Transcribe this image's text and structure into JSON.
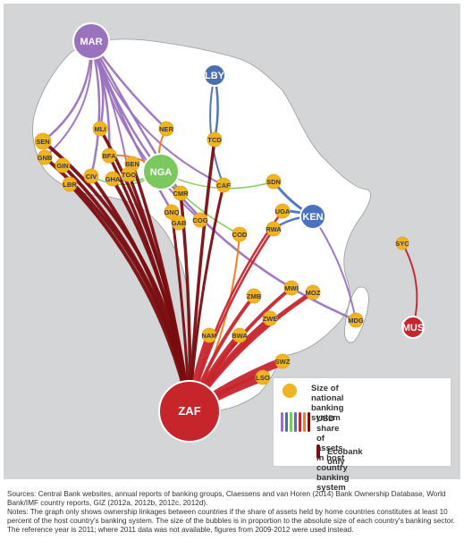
{
  "nodes": [
    {
      "code": "MAR",
      "big": true
    },
    {
      "code": "LBY",
      "big": true
    },
    {
      "code": "NGA",
      "big": true
    },
    {
      "code": "KEN",
      "big": true
    },
    {
      "code": "ZAF",
      "big": true
    },
    {
      "code": "MUS",
      "big": true
    },
    {
      "code": "SEN"
    },
    {
      "code": "GNB"
    },
    {
      "code": "GIN"
    },
    {
      "code": "LBR"
    },
    {
      "code": "MLI"
    },
    {
      "code": "NER"
    },
    {
      "code": "TCD"
    },
    {
      "code": "BFA"
    },
    {
      "code": "BEN"
    },
    {
      "code": "CIV"
    },
    {
      "code": "GHA"
    },
    {
      "code": "TGO"
    },
    {
      "code": "CMR"
    },
    {
      "code": "GNQ"
    },
    {
      "code": "GAB"
    },
    {
      "code": "COG"
    },
    {
      "code": "CAF"
    },
    {
      "code": "SDN"
    },
    {
      "code": "UGA"
    },
    {
      "code": "RWA"
    },
    {
      "code": "COD"
    },
    {
      "code": "SYC"
    },
    {
      "code": "ZMB"
    },
    {
      "code": "MWI"
    },
    {
      "code": "MOZ"
    },
    {
      "code": "ZWE"
    },
    {
      "code": "MDG"
    },
    {
      "code": "NAM"
    },
    {
      "code": "BWA"
    },
    {
      "code": "SWZ"
    },
    {
      "code": "LSO"
    }
  ],
  "colors": {
    "MAR": "#9b72be",
    "LBY": "#4a6fb0",
    "NGA": "#7bc85f",
    "KEN": "#4a72c0",
    "ZAF": "#c7252c",
    "MUS": "#c7252c",
    "small": "#f0b323",
    "ecobank": "#7a0d10",
    "orange": "#ef7d21",
    "land": "#ffffff",
    "sea": "#d4d5d6"
  },
  "legend": {
    "size_label_1": "Size of national",
    "size_label_2": "banking system",
    "share_label_1": "USD share of assets in host",
    "share_label_2": "country banking system",
    "ecobank_label": "Ecobank only",
    "share_colors": [
      "#9b72be",
      "#4a6fb0",
      "#7bc85f",
      "#4a72c0",
      "#c7252c",
      "#ef7d21",
      "#7a0d10"
    ]
  },
  "notes": {
    "sources": "Sources: Central Bank websites, annual reports of banking groups, Claessens and van Horen (2014) Bank Ownership Database, World Bank/IMF country reports, GIZ (2012a, 2012b, 2012c, 2012d).",
    "notes": "Notes: The graph only shows ownership linkages between countries if the share of assets held by home countries constitutes at least 10 percent of the host country's banking system. The size of the bubbles is in proportion to the absolute size of each country's banking sector. The reference year is 2011; where 2011 data was not available, figures from 2009-2012 were used instead."
  }
}
